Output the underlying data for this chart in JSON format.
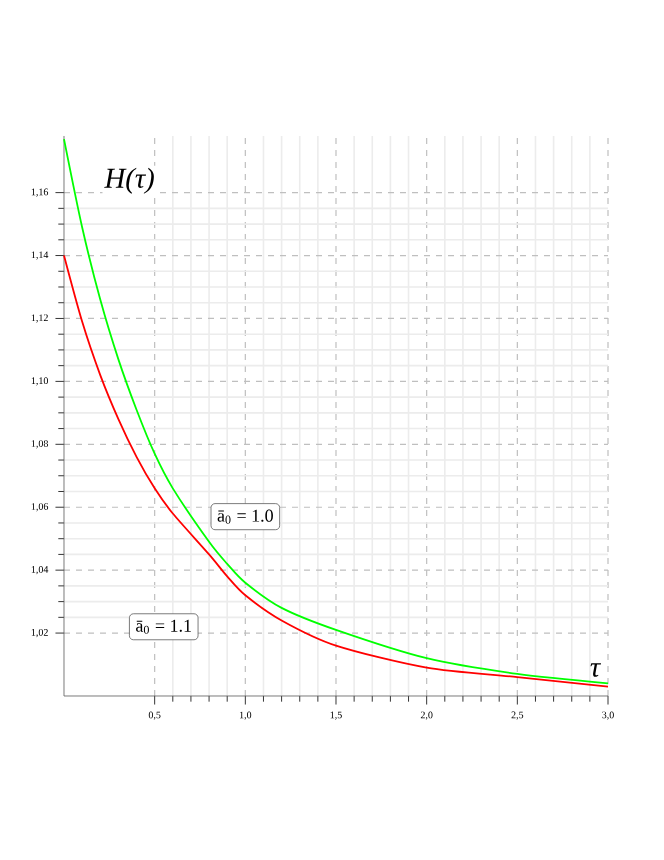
{
  "chart_data": {
    "type": "line",
    "xlabel": "τ",
    "ylabel": "H(τ)",
    "xlim": [
      0,
      3.0
    ],
    "ylim": [
      1.0,
      1.178
    ],
    "xticks": [
      {
        "value": 0.5,
        "label": "0,5"
      },
      {
        "value": 1.0,
        "label": "1,0"
      },
      {
        "value": 1.5,
        "label": "1,5"
      },
      {
        "value": 2.0,
        "label": "2,0"
      },
      {
        "value": 2.5,
        "label": "2,5"
      },
      {
        "value": 3.0,
        "label": "3,0"
      }
    ],
    "yticks": [
      {
        "value": 1.02,
        "label": "1,02"
      },
      {
        "value": 1.04,
        "label": "1,04"
      },
      {
        "value": 1.06,
        "label": "1,06"
      },
      {
        "value": 1.08,
        "label": "1,08"
      },
      {
        "value": 1.1,
        "label": "1,10"
      },
      {
        "value": 1.12,
        "label": "1,12"
      },
      {
        "value": 1.14,
        "label": "1,14"
      },
      {
        "value": 1.16,
        "label": "1,16"
      }
    ],
    "grid": true,
    "marker": "none",
    "line_style": "solid",
    "series": [
      {
        "color": "#00ff00",
        "x": [
          0,
          0.1,
          0.2,
          0.3,
          0.4,
          0.5,
          0.6,
          0.8,
          0.9,
          1.0,
          1.2,
          1.5,
          2.0,
          2.5,
          3.0
        ],
        "values": [
          1.177,
          1.149,
          1.126,
          1.107,
          1.091,
          1.077,
          1.066,
          1.049,
          1.042,
          1.036,
          1.028,
          1.021,
          1.012,
          1.007,
          1.004
        ]
      },
      {
        "color": "#ff0000",
        "x": [
          0,
          0.1,
          0.2,
          0.3,
          0.4,
          0.5,
          0.6,
          0.8,
          0.9,
          1.0,
          1.2,
          1.5,
          2.0,
          2.5,
          3.0
        ],
        "values": [
          1.14,
          1.119,
          1.102,
          1.088,
          1.076,
          1.066,
          1.058,
          1.045,
          1.038,
          1.032,
          1.024,
          1.016,
          1.009,
          1.006,
          1.003
        ]
      }
    ],
    "annotations": [
      {
        "text": "ā$_{0}$ = 1.0",
        "x": 1.0,
        "y": 1.057
      },
      {
        "text": "ā$_{0}$ = 1.1",
        "x": 0.55,
        "y": 1.022
      }
    ]
  }
}
